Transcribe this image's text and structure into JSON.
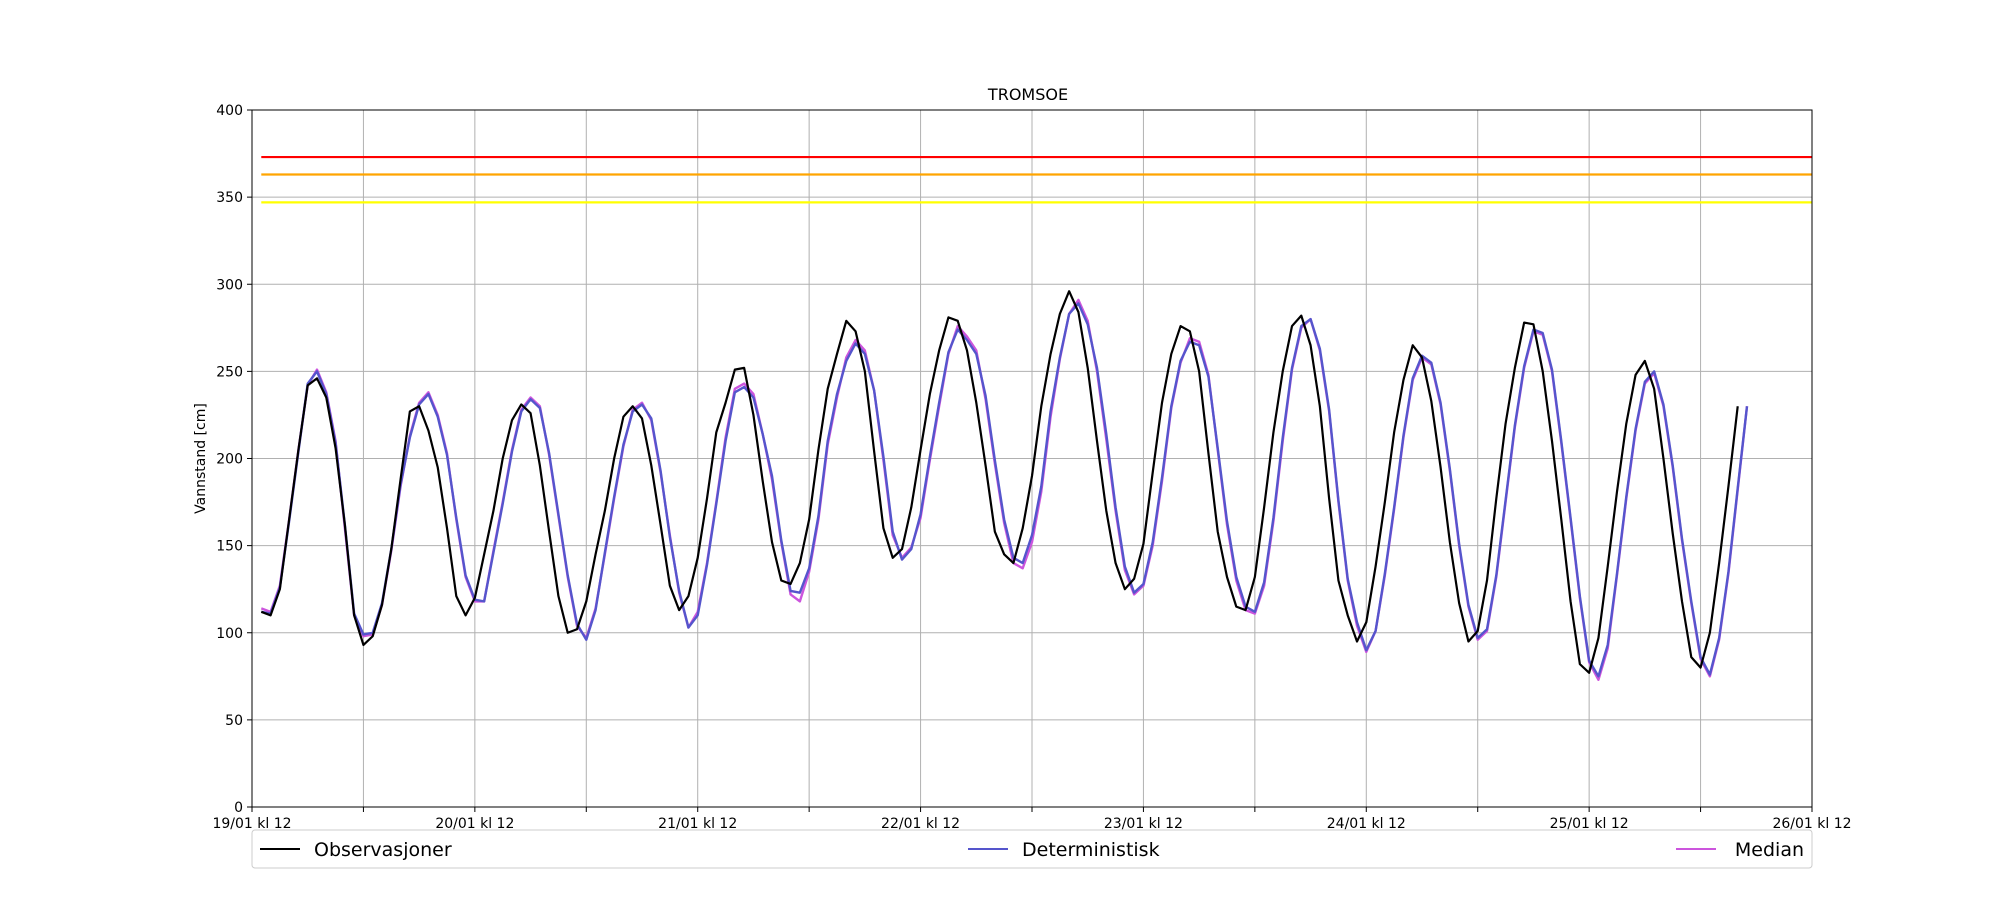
{
  "chart_data": {
    "type": "line",
    "title": "TROMSOE",
    "xlabel": "",
    "ylabel": "Vannstand [cm]",
    "ylim": [
      0,
      400
    ],
    "yticks": [
      0,
      50,
      100,
      150,
      200,
      250,
      300,
      350,
      400
    ],
    "xlim": [
      0,
      168
    ],
    "x_ticks": [
      {
        "x": 0,
        "label": "19/01 kl 12"
      },
      {
        "x": 24,
        "label": "20/01 kl 12"
      },
      {
        "x": 48,
        "label": "21/01 kl 12"
      },
      {
        "x": 72,
        "label": "22/01 kl 12"
      },
      {
        "x": 96,
        "label": "23/01 kl 12"
      },
      {
        "x": 120,
        "label": "24/01 kl 12"
      },
      {
        "x": 144,
        "label": "25/01 kl 12"
      },
      {
        "x": 168,
        "label": "26/01 kl 12"
      }
    ],
    "x_minor_ticks": [
      12,
      36,
      60,
      84,
      108,
      132,
      156
    ],
    "grid": true,
    "legend_position": "bottom",
    "thresholds": [
      {
        "value": 373,
        "color": "#ff0000"
      },
      {
        "value": 363,
        "color": "#ffa500"
      },
      {
        "value": 347,
        "color": "#ffff00"
      }
    ],
    "series": [
      {
        "name": "Median",
        "color": "#cc55dd",
        "x_start": 1,
        "x_step": 1,
        "values": [
          114,
          112,
          127,
          165,
          205,
          242,
          251,
          238,
          210,
          160,
          110,
          98,
          99,
          116,
          147,
          184,
          213,
          232,
          238,
          225,
          203,
          165,
          132,
          118,
          118,
          147,
          175,
          205,
          228,
          235,
          230,
          202,
          167,
          132,
          104,
          97,
          114,
          145,
          177,
          207,
          228,
          232,
          222,
          192,
          156,
          123,
          103,
          112,
          140,
          175,
          212,
          240,
          243,
          237,
          214,
          188,
          152,
          122,
          118,
          135,
          165,
          208,
          235,
          258,
          268,
          262,
          239,
          199,
          156,
          143,
          149,
          166,
          199,
          230,
          260,
          276,
          270,
          262,
          234,
          197,
          163,
          140,
          137,
          152,
          181,
          224,
          257,
          283,
          291,
          279,
          250,
          211,
          170,
          136,
          122,
          127,
          150,
          187,
          229,
          255,
          269,
          267,
          248,
          205,
          162,
          130,
          113,
          111,
          127,
          164,
          210,
          251,
          275,
          280,
          262,
          227,
          175,
          130,
          104,
          89,
          101,
          133,
          171,
          212,
          245,
          258,
          254,
          231,
          193,
          150,
          115,
          96,
          101,
          132,
          175,
          218,
          252,
          273,
          271,
          250,
          209,
          165,
          120,
          83,
          73,
          91,
          133,
          177,
          216,
          243,
          249,
          230,
          195,
          153,
          117,
          85,
          75,
          96,
          134,
          182,
          230
        ]
      },
      {
        "name": "Deterministisk",
        "color": "#5555cc",
        "x_start": 1,
        "x_step": 1,
        "values": [
          112,
          111,
          126,
          164,
          204,
          243,
          250,
          237,
          209,
          162,
          111,
          99,
          100,
          117,
          148,
          185,
          212,
          231,
          237,
          224,
          202,
          166,
          133,
          119,
          118,
          146,
          174,
          204,
          227,
          234,
          229,
          203,
          168,
          133,
          105,
          96,
          113,
          146,
          178,
          208,
          227,
          231,
          223,
          193,
          155,
          124,
          103,
          110,
          139,
          174,
          210,
          238,
          241,
          235,
          214,
          190,
          153,
          124,
          123,
          137,
          167,
          210,
          237,
          256,
          266,
          260,
          239,
          201,
          158,
          142,
          148,
          168,
          201,
          232,
          261,
          274,
          268,
          260,
          236,
          199,
          165,
          143,
          140,
          156,
          184,
          227,
          258,
          283,
          289,
          277,
          252,
          214,
          172,
          138,
          123,
          128,
          152,
          189,
          230,
          256,
          267,
          265,
          247,
          206,
          164,
          132,
          115,
          112,
          129,
          166,
          212,
          252,
          276,
          280,
          263,
          228,
          176,
          131,
          106,
          90,
          101,
          134,
          172,
          213,
          246,
          259,
          255,
          232,
          194,
          151,
          116,
          97,
          102,
          133,
          176,
          219,
          253,
          274,
          272,
          251,
          210,
          166,
          121,
          84,
          75,
          93,
          134,
          178,
          217,
          244,
          250,
          231,
          196,
          154,
          118,
          86,
          76,
          97,
          135,
          183,
          230
        ]
      },
      {
        "name": "Observasjoner",
        "color": "#000000",
        "x_start": 1,
        "x_step": 1,
        "values": [
          112,
          110,
          125,
          165,
          205,
          242,
          246,
          235,
          206,
          162,
          110,
          93,
          98,
          116,
          148,
          188,
          227,
          230,
          216,
          195,
          160,
          121,
          110,
          120,
          145,
          170,
          200,
          222,
          231,
          226,
          196,
          158,
          121,
          100,
          102,
          118,
          145,
          170,
          200,
          224,
          230,
          223,
          196,
          162,
          127,
          113,
          121,
          143,
          177,
          215,
          232,
          251,
          252,
          225,
          187,
          152,
          130,
          128,
          140,
          165,
          205,
          240,
          260,
          279,
          273,
          250,
          204,
          160,
          143,
          148,
          172,
          205,
          237,
          262,
          281,
          279,
          262,
          232,
          196,
          158,
          145,
          140,
          160,
          190,
          230,
          260,
          283,
          296,
          284,
          252,
          210,
          170,
          140,
          125,
          131,
          151,
          192,
          232,
          260,
          276,
          273,
          250,
          203,
          158,
          132,
          115,
          113,
          132,
          172,
          215,
          250,
          276,
          282,
          265,
          230,
          177,
          130,
          110,
          95,
          106,
          138,
          175,
          215,
          245,
          265,
          258,
          233,
          195,
          152,
          117,
          95,
          101,
          130,
          177,
          220,
          252,
          278,
          277,
          250,
          210,
          165,
          118,
          82,
          77,
          97,
          138,
          181,
          220,
          248,
          256,
          240,
          200,
          157,
          118,
          86,
          80,
          100,
          140,
          184,
          230
        ]
      }
    ],
    "legend": [
      {
        "label": "Observasjoner",
        "color": "#000000"
      },
      {
        "label": "Deterministisk",
        "color": "#5555cc"
      },
      {
        "label": "Median",
        "color": "#cc55dd"
      }
    ]
  }
}
